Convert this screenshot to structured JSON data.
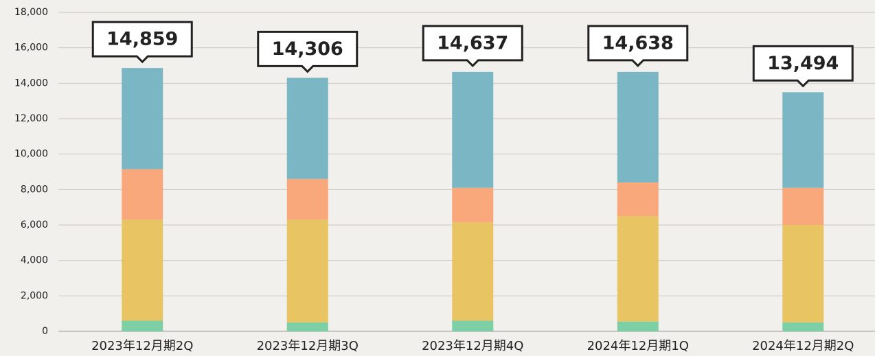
{
  "chart_data": {
    "type": "stacked_bar",
    "categories": [
      "2023年12月期2Q",
      "2023年12月期3Q",
      "2023年12月期4Q",
      "2024年12月期1Q",
      "2024年12月期2Q"
    ],
    "series": [
      {
        "color": "#7dcfa6",
        "values": [
          600,
          500,
          600,
          550,
          500
        ]
      },
      {
        "color": "#e8c462",
        "values": [
          5700,
          5800,
          5550,
          5950,
          5500
        ]
      },
      {
        "color": "#f9a87c",
        "values": [
          2850,
          2300,
          1950,
          1900,
          2100
        ]
      },
      {
        "color": "#7ab6c4",
        "values": [
          5709,
          5706,
          6537,
          6238,
          5394
        ]
      }
    ],
    "totals": {
      "values": [
        14859,
        14306,
        14637,
        14638,
        13494
      ],
      "value_labels": [
        "14,859",
        "14,306",
        "14,637",
        "14,638",
        "13,494"
      ]
    },
    "ylim": [
      0,
      18000
    ],
    "yticks": [
      0,
      {
        "value": 2000,
        "label": "2,000"
      },
      {
        "value": 4000,
        "label": "4,000"
      },
      {
        "value": 6000,
        "label": "6,000"
      },
      {
        "value": 8000,
        "label": "8,000"
      },
      {
        "value": 10000,
        "label": "10,000"
      },
      {
        "value": 12000,
        "label": "12,000"
      },
      {
        "value": 14000,
        "label": "14,000"
      },
      {
        "value": 16000,
        "label": "16,000"
      },
      {
        "value": 18000,
        "label": "18,000"
      }
    ],
    "grid": true
  }
}
